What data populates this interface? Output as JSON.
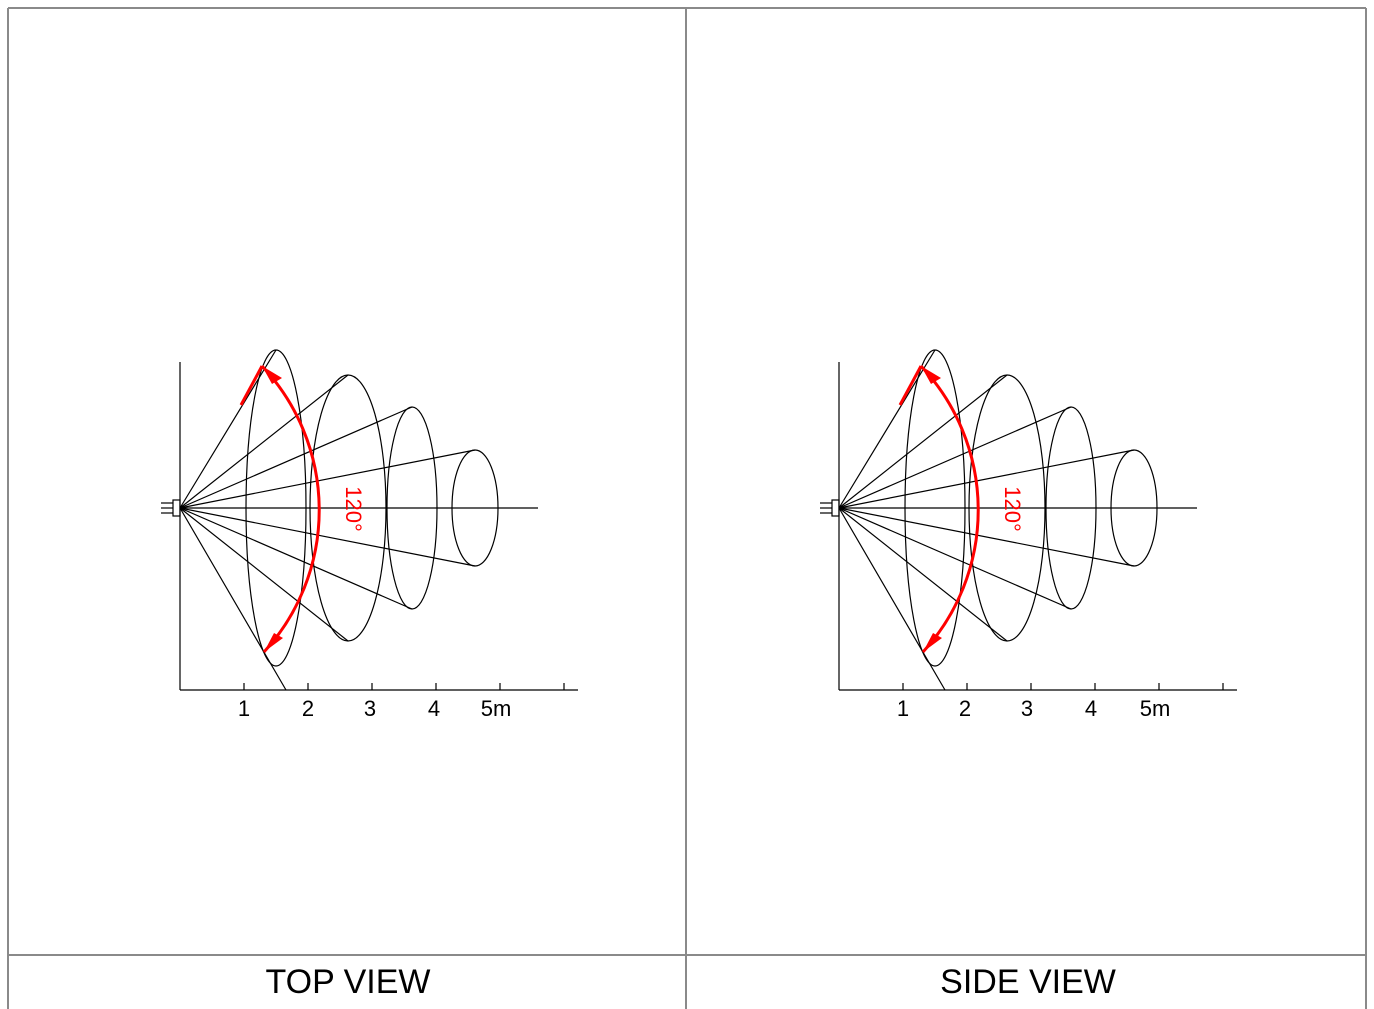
{
  "panels": [
    {
      "caption": "TOP VIEW"
    },
    {
      "caption": "SIDE VIEW"
    }
  ],
  "diagram": {
    "angle_label": "120°",
    "tick_labels": [
      "1",
      "2",
      "3",
      "4",
      "5m"
    ],
    "accent_color": "#ff0000",
    "line_color": "#000000",
    "border_color": "#8a8a8a"
  }
}
